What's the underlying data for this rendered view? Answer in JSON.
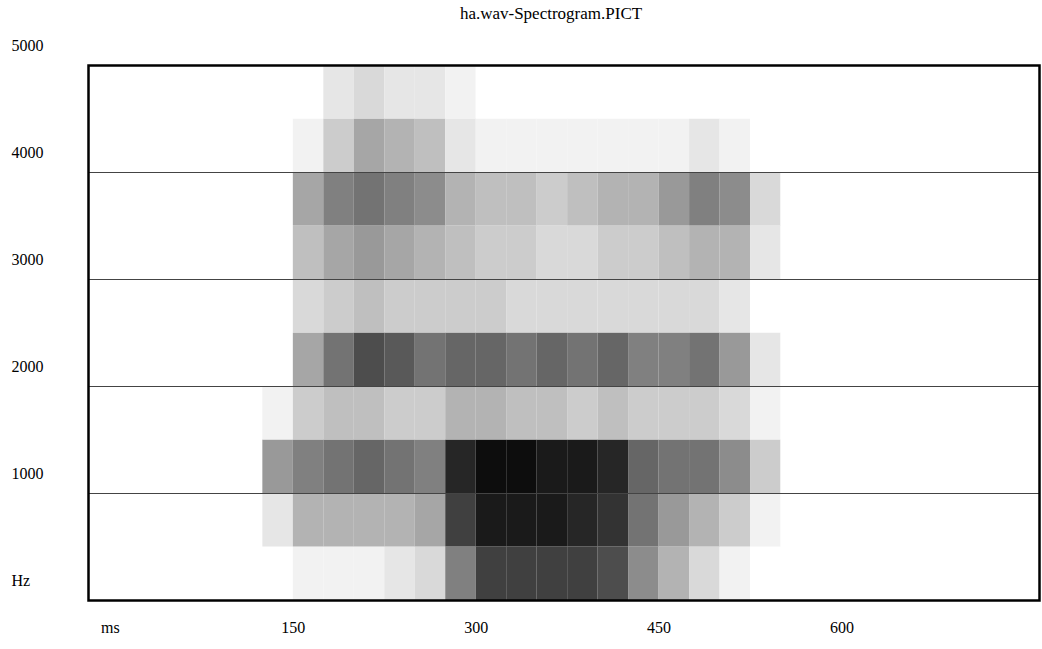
{
  "chart_data": {
    "type": "heatmap",
    "title": "ha.wav-Spectrogram.PICT",
    "xlim": [
      -18,
      762
    ],
    "xticks": [
      {
        "value": 0,
        "label": "ms"
      },
      150,
      300,
      450,
      600
    ],
    "ylim": [
      0,
      5000
    ],
    "yticks": [
      {
        "value": 0,
        "label": "Hz"
      },
      1000,
      2000,
      3000,
      4000,
      5000
    ],
    "grid": true,
    "time_bins": [
      125,
      150,
      175,
      200,
      225,
      250,
      275,
      300,
      325,
      350,
      375,
      400,
      425,
      450,
      475,
      500,
      525,
      550,
      575
    ],
    "freq_bins": [
      0,
      500,
      1000,
      1500,
      2000,
      2500,
      3000,
      3500,
      4000,
      4500,
      5000
    ],
    "color_range": [
      0,
      1
    ],
    "cells": [
      [
        0,
        0.05,
        0.05,
        0.05,
        0.1,
        0.15,
        0.5,
        0.75,
        0.75,
        0.75,
        0.75,
        0.7,
        0.45,
        0.3,
        0.15,
        0.05,
        0,
        0
      ],
      [
        0.1,
        0.3,
        0.3,
        0.3,
        0.3,
        0.35,
        0.75,
        0.9,
        0.9,
        0.9,
        0.85,
        0.8,
        0.55,
        0.4,
        0.3,
        0.2,
        0.05,
        0
      ],
      [
        0.4,
        0.5,
        0.55,
        0.6,
        0.55,
        0.5,
        0.85,
        0.95,
        0.95,
        0.9,
        0.9,
        0.85,
        0.6,
        0.55,
        0.55,
        0.45,
        0.2,
        0
      ],
      [
        0.05,
        0.2,
        0.25,
        0.25,
        0.2,
        0.2,
        0.3,
        0.3,
        0.25,
        0.25,
        0.2,
        0.25,
        0.2,
        0.2,
        0.2,
        0.15,
        0.05,
        0
      ],
      [
        0,
        0.35,
        0.55,
        0.7,
        0.65,
        0.55,
        0.6,
        0.6,
        0.55,
        0.6,
        0.55,
        0.6,
        0.5,
        0.5,
        0.55,
        0.4,
        0.1,
        0
      ],
      [
        0,
        0.15,
        0.2,
        0.25,
        0.2,
        0.2,
        0.2,
        0.2,
        0.15,
        0.15,
        0.15,
        0.15,
        0.15,
        0.15,
        0.15,
        0.1,
        0,
        0
      ],
      [
        0,
        0.25,
        0.35,
        0.4,
        0.35,
        0.3,
        0.25,
        0.2,
        0.2,
        0.15,
        0.15,
        0.2,
        0.2,
        0.25,
        0.3,
        0.3,
        0.1,
        0
      ],
      [
        0,
        0.35,
        0.5,
        0.55,
        0.5,
        0.45,
        0.3,
        0.25,
        0.25,
        0.2,
        0.25,
        0.3,
        0.3,
        0.4,
        0.5,
        0.45,
        0.15,
        0
      ],
      [
        0,
        0.05,
        0.2,
        0.35,
        0.3,
        0.25,
        0.1,
        0.05,
        0.05,
        0.05,
        0.05,
        0.05,
        0.05,
        0.05,
        0.1,
        0.05,
        0,
        0
      ],
      [
        0,
        0,
        0.1,
        0.15,
        0.1,
        0.1,
        0.05,
        0,
        0,
        0,
        0,
        0,
        0,
        0,
        0,
        0,
        0,
        0
      ]
    ]
  }
}
